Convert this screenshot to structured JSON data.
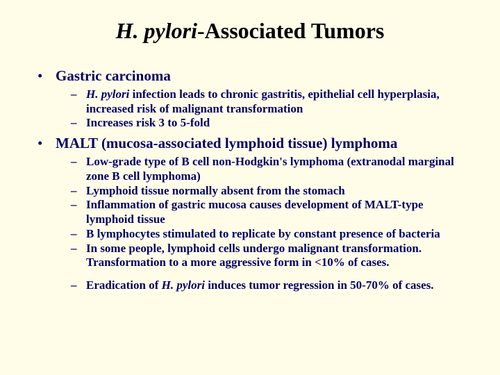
{
  "colors": {
    "background": "#fffde8",
    "text": "#000066",
    "title": "#000000"
  },
  "fonts": {
    "title_size": 32,
    "l1_size": 21,
    "l2_size": 17
  },
  "title": {
    "italic_part": "H. pylori",
    "rest": "-Associated Tumors"
  },
  "bullets": [
    {
      "text": "Gastric carcinoma",
      "sub": [
        {
          "pre_italic": "H. pylori",
          "post": " infection leads to chronic gastritis, epithelial cell hyperplasia, increased risk of malignant transformation"
        },
        {
          "text": "Increases risk 3 to 5-fold"
        }
      ]
    },
    {
      "text": "MALT (mucosa-associated lymphoid tissue) lymphoma",
      "sub": [
        {
          "text": "Low-grade type of B cell non-Hodgkin's lymphoma (extranodal marginal zone B cell lymphoma)"
        },
        {
          "text": "Lymphoid tissue normally absent from the stomach"
        },
        {
          "text": "Inflammation of gastric mucosa causes development of MALT-type lymphoid tissue"
        },
        {
          "text": "B lymphocytes stimulated to replicate by constant presence of bacteria"
        },
        {
          "text": "In some people, lymphoid cells undergo malignant transformation. Transformation to a more aggressive form in <10% of cases."
        },
        {
          "gap": true,
          "pre": "Eradication of ",
          "italic": "H. pylori",
          "post": " induces tumor regression in 50-70% of cases."
        }
      ]
    }
  ]
}
